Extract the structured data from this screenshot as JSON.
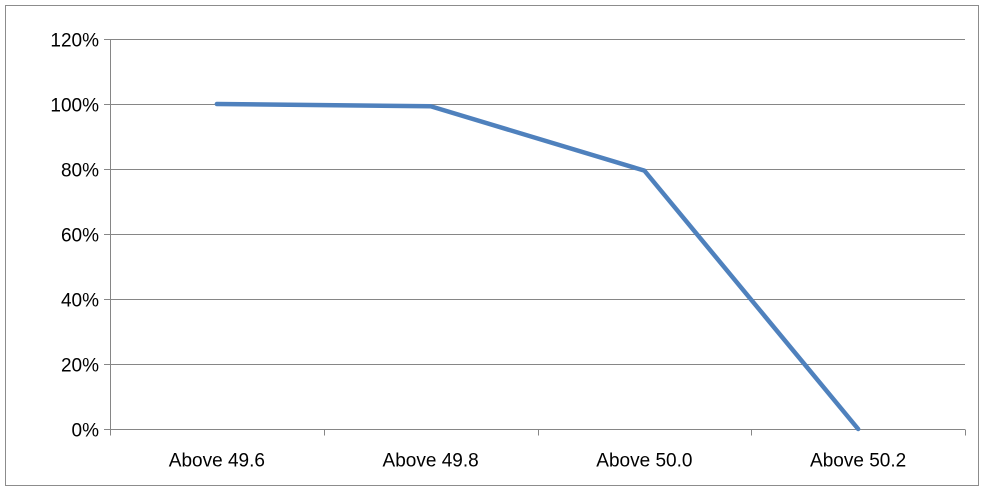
{
  "chart_data": {
    "type": "line",
    "categories": [
      "Above 49.6",
      "Above 49.8",
      "Above 50.0",
      "Above 50.2"
    ],
    "series": [
      {
        "values": [
          100,
          99.3,
          79.5,
          0
        ],
        "color": "#4F81BD"
      }
    ],
    "y_tick_labels": [
      "0%",
      "20%",
      "40%",
      "60%",
      "80%",
      "100%",
      "120%"
    ],
    "y_ticks": [
      0,
      20,
      40,
      60,
      80,
      100,
      120
    ],
    "ylim": [
      0,
      120
    ],
    "y_unit": "percent",
    "grid": true,
    "gridline_color": "#868686",
    "legend": "none",
    "title": "",
    "xlabel": "",
    "ylabel": ""
  }
}
